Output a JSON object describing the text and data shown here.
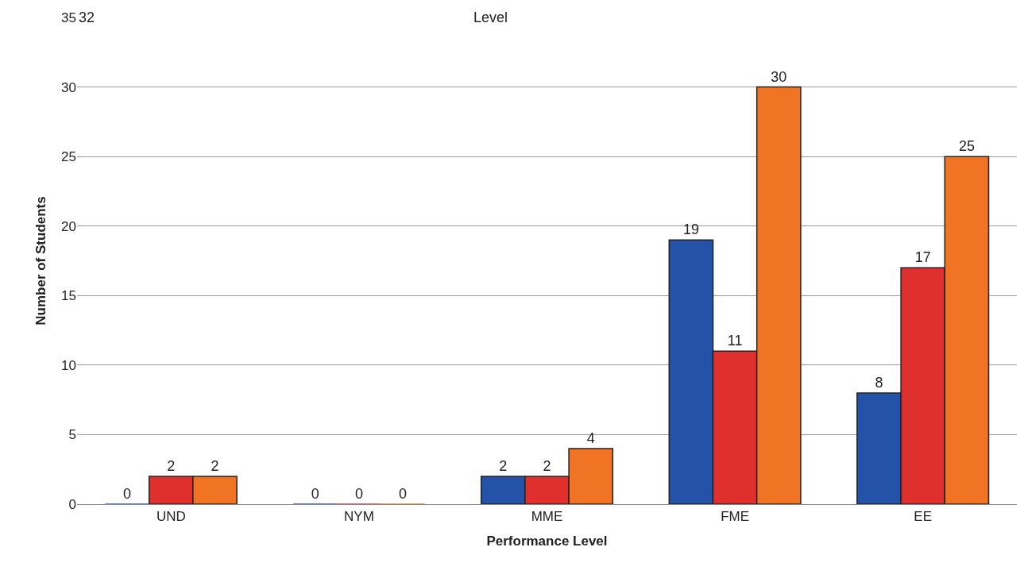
{
  "chart_data": {
    "type": "bar",
    "xlabel": "Performance Level",
    "ylabel": "Number of Students",
    "annotations": [
      "32",
      "Level"
    ],
    "categories": [
      "UND",
      "NYM",
      "MME",
      "FME",
      "EE"
    ],
    "series": [
      {
        "color": "#2352a8",
        "values": [
          0,
          0,
          2,
          19,
          8
        ]
      },
      {
        "color": "#e0302e",
        "values": [
          2,
          0,
          2,
          11,
          17
        ]
      },
      {
        "color": "#f07424",
        "values": [
          2,
          0,
          4,
          30,
          25
        ]
      }
    ],
    "ylim": [
      0,
      35
    ],
    "yticks": [
      0,
      5,
      10,
      15,
      20,
      25,
      30,
      35
    ],
    "grid": "y",
    "legend": false,
    "data_labels": true
  }
}
